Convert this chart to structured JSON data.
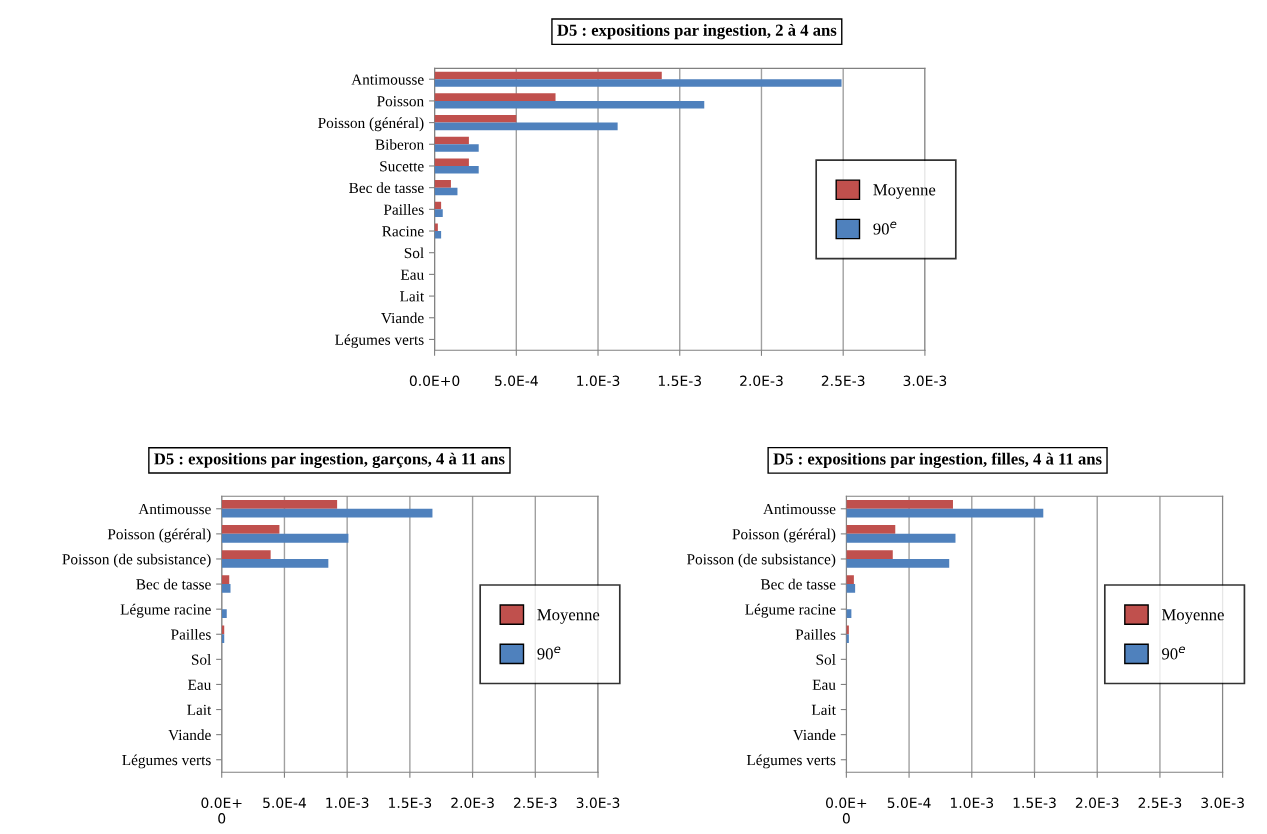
{
  "chart_data": [
    {
      "type": "bar",
      "orientation": "horizontal",
      "title": "D5 : expositions par ingestion, 2 à 4 ans",
      "categories": [
        "Antimousse",
        "Poisson",
        "Poisson (général)",
        "Biberon",
        "Sucette",
        "Bec de tasse",
        "Pailles",
        "Racine",
        "Sol",
        "Eau",
        "Lait",
        "Viande",
        "Légumes verts"
      ],
      "series": [
        {
          "name": "Moyenne",
          "color": "#c0504d",
          "values": [
            0.00139,
            0.00074,
            0.0005,
            0.00021,
            0.00021,
            0.0001,
            4e-05,
            2e-05,
            0,
            0,
            0,
            0,
            0
          ]
        },
        {
          "name": "90$^{e}$",
          "color": "#4f81bd",
          "values": [
            0.00249,
            0.00165,
            0.00112,
            0.00027,
            0.00027,
            0.00014,
            5e-05,
            4e-05,
            0,
            0,
            0,
            0,
            0
          ]
        }
      ],
      "xlim": [
        0,
        0.003
      ],
      "xticks": [
        {
          "value": 0,
          "label": "0.0E+0"
        },
        {
          "value": 0.0005,
          "label": "5.0E-4"
        },
        {
          "value": 0.001,
          "label": "1.0E-3"
        },
        {
          "value": 0.0015,
          "label": "1.5E-3"
        },
        {
          "value": 0.002,
          "label": "2.0E-3"
        },
        {
          "value": 0.0025,
          "label": "2.5E-3"
        },
        {
          "value": 0.003,
          "label": "3.0E-3"
        }
      ],
      "grid": "x",
      "legend": "right"
    },
    {
      "type": "bar",
      "orientation": "horizontal",
      "title": "D5 : expositions par ingestion, garçons, 4 à 11 ans",
      "categories": [
        "Antimousse",
        "Poisson (géréral)",
        "Poisson (de subsistance)",
        "Bec de tasse",
        "Légume racine",
        "Pailles",
        "Sol",
        "Eau",
        "Lait",
        "Viande",
        "Légumes verts"
      ],
      "series": [
        {
          "name": "Moyenne",
          "color": "#c0504d",
          "values": [
            0.00092,
            0.00046,
            0.00039,
            6e-05,
            0,
            2e-05,
            0,
            0,
            0,
            0,
            0
          ]
        },
        {
          "name": "90$^{e}$",
          "color": "#4f81bd",
          "values": [
            0.00168,
            0.00101,
            0.00085,
            7e-05,
            4e-05,
            2e-05,
            0,
            0,
            0,
            0,
            0
          ]
        }
      ],
      "xlim": [
        0,
        0.003
      ],
      "xticks": [
        {
          "value": 0,
          "label": "0.0E+\n0"
        },
        {
          "value": 0.0005,
          "label": "5.0E-4"
        },
        {
          "value": 0.001,
          "label": "1.0E-3"
        },
        {
          "value": 0.0015,
          "label": "1.5E-3"
        },
        {
          "value": 0.002,
          "label": "2.0E-3"
        },
        {
          "value": 0.0025,
          "label": "2.5E-3"
        },
        {
          "value": 0.003,
          "label": "3.0E-3"
        }
      ],
      "grid": "x",
      "legend": "right"
    },
    {
      "type": "bar",
      "orientation": "horizontal",
      "title": "D5 : expositions par ingestion, filles, 4 à 11 ans",
      "categories": [
        "Antimousse",
        "Poisson (géréral)",
        "Poisson (de subsistance)",
        "Bec de tasse",
        "Légume racine",
        "Pailles",
        "Sol",
        "Eau",
        "Lait",
        "Viande",
        "Légumes verts"
      ],
      "series": [
        {
          "name": "Moyenne",
          "color": "#c0504d",
          "values": [
            0.00085,
            0.00039,
            0.00037,
            6e-05,
            0,
            2e-05,
            0,
            0,
            0,
            0,
            0
          ]
        },
        {
          "name": "90$^{e}$",
          "color": "#4f81bd",
          "values": [
            0.00157,
            0.00087,
            0.00082,
            7e-05,
            4e-05,
            2e-05,
            0,
            0,
            0,
            0,
            0
          ]
        }
      ],
      "xlim": [
        0,
        0.003
      ],
      "xticks": [
        {
          "value": 0,
          "label": "0.0E+\n0"
        },
        {
          "value": 0.0005,
          "label": "5.0E-4"
        },
        {
          "value": 0.001,
          "label": "1.0E-3"
        },
        {
          "value": 0.0015,
          "label": "1.5E-3"
        },
        {
          "value": 0.002,
          "label": "2.0E-3"
        },
        {
          "value": 0.0025,
          "label": "2.5E-3"
        },
        {
          "value": 0.003,
          "label": "3.0E-3"
        }
      ],
      "grid": "x",
      "legend": "right"
    }
  ]
}
